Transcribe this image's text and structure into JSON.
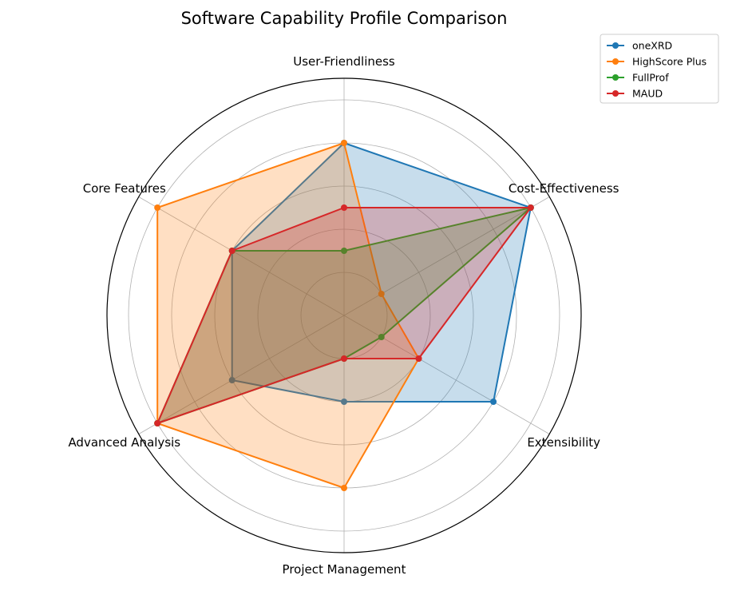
{
  "chart_data": {
    "type": "radar",
    "title": "Software Capability Profile Comparison",
    "axes": [
      "User-Friendliness",
      "Cost-Effectiveness",
      "Extensibility",
      "Project Management",
      "Advanced Analysis",
      "Core Features"
    ],
    "rlim": [
      0,
      5.5
    ],
    "radial_ticks": [
      1,
      2,
      3,
      4,
      5
    ],
    "grid": true,
    "legend_position": "top-right",
    "series": [
      {
        "name": "oneXRD",
        "color": "#1f77b4",
        "values": [
          4,
          5,
          4,
          2,
          3,
          3
        ]
      },
      {
        "name": "HighScore Plus",
        "color": "#ff7f0e",
        "values": [
          4,
          1,
          2,
          4,
          5,
          5
        ]
      },
      {
        "name": "FullProf",
        "color": "#2ca02c",
        "values": [
          1.5,
          5,
          1,
          1,
          5,
          3
        ]
      },
      {
        "name": "MAUD",
        "color": "#d62728",
        "values": [
          2.5,
          5,
          2,
          1,
          5,
          3
        ]
      }
    ]
  }
}
